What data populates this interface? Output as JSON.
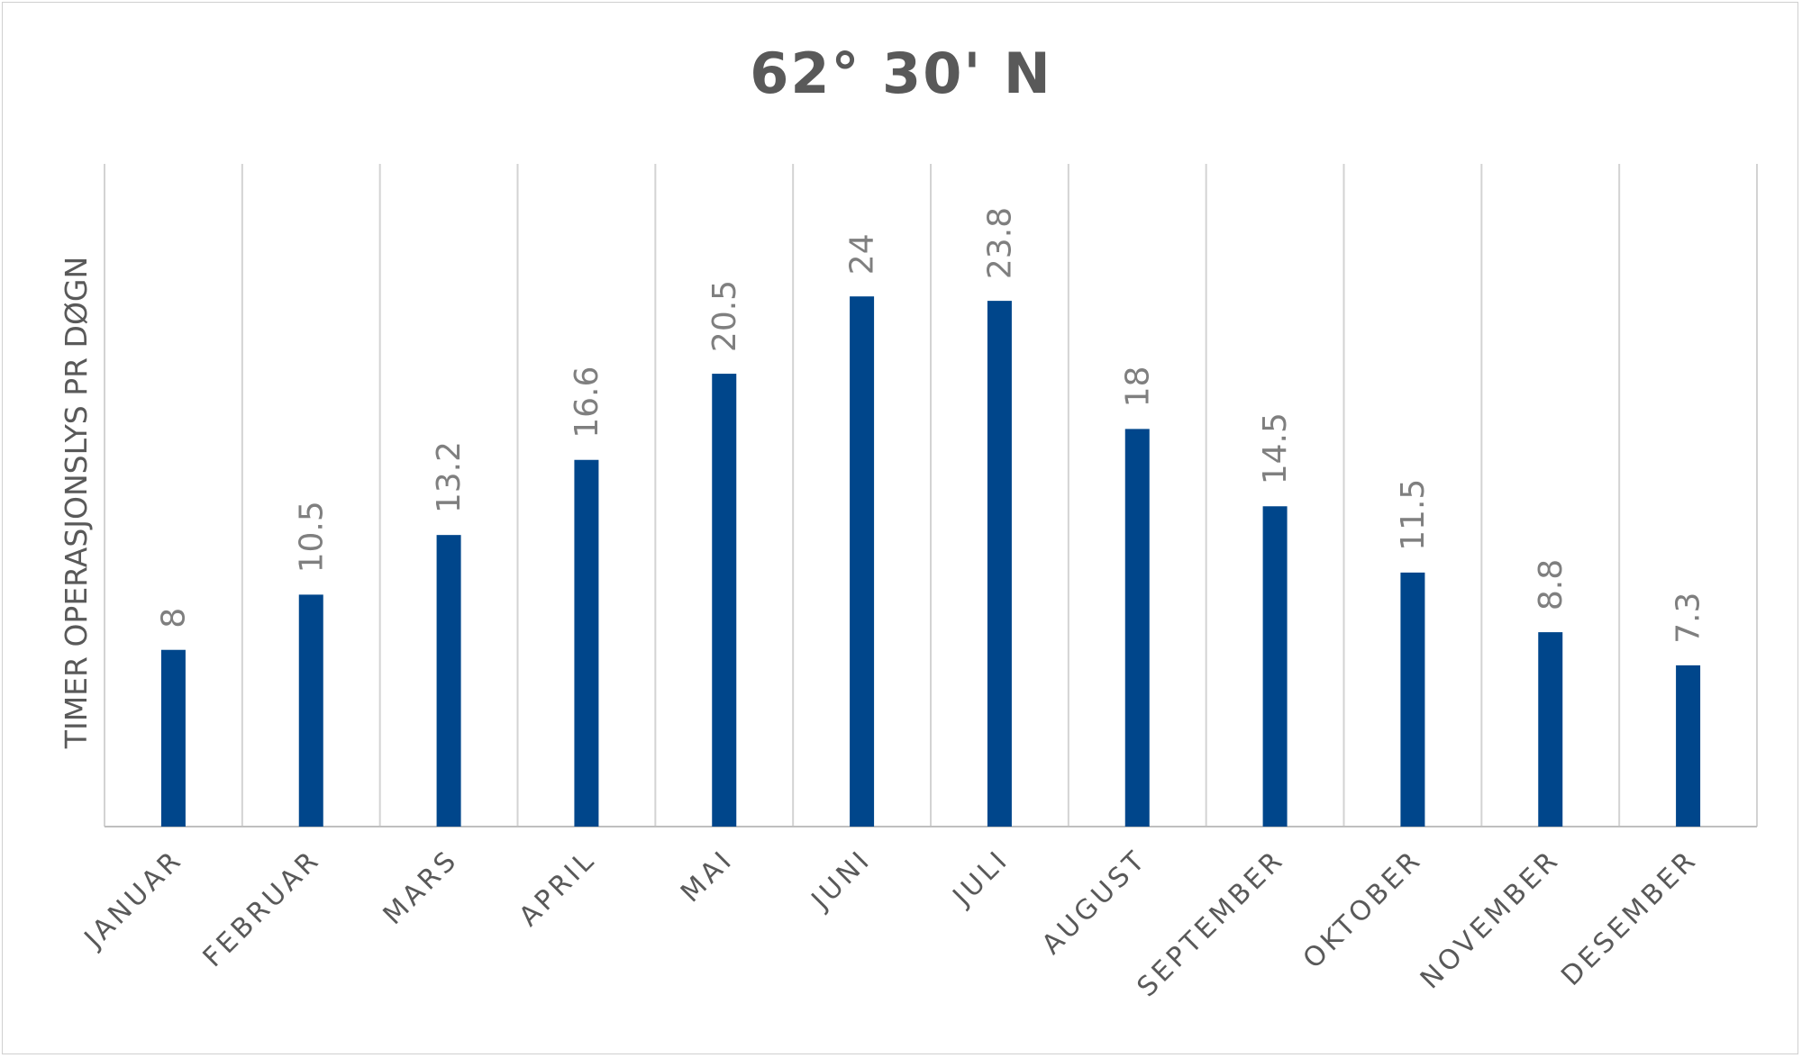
{
  "chart_data": {
    "type": "bar",
    "title": "62° 30' N",
    "xlabel": "",
    "ylabel": "TIMER OPERASJONSLYS PR DØGN",
    "categories": [
      "JANUAR",
      "FEBRUAR",
      "MARS",
      "APRIL",
      "MAI",
      "JUNI",
      "JULI",
      "AUGUST",
      "SEPTEMBER",
      "OKTOBER",
      "NOVEMBER",
      "DESEMBER"
    ],
    "values": [
      8,
      10.5,
      13.2,
      16.6,
      20.5,
      24,
      23.8,
      18,
      14.5,
      11.5,
      8.8,
      7.3
    ],
    "data_labels": [
      "8",
      "10.5",
      "13.2",
      "16.6",
      "20.5",
      "24",
      "23.8",
      "18",
      "14.5",
      "11.5",
      "8.8",
      "7.3"
    ],
    "ylim": [
      0,
      30
    ],
    "grid": "vertical",
    "legend": "none",
    "colors": {
      "bar": "#00468b",
      "grid": "#d3d3d3",
      "axis": "#bfbfbf",
      "text": "#595959",
      "label": "#7f7f7f"
    }
  }
}
